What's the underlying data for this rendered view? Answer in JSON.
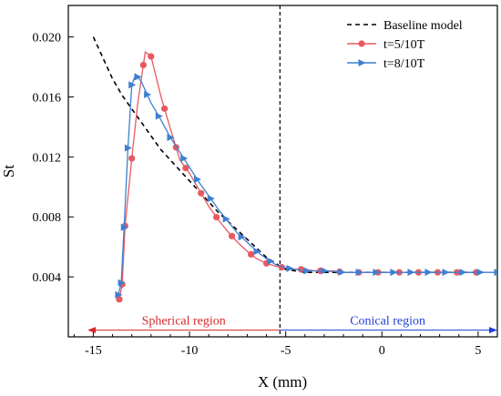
{
  "chart_data": {
    "type": "line",
    "xlabel": "X (mm)",
    "ylabel": "St",
    "xlim": [
      -16.3,
      6
    ],
    "ylim": [
      0.0,
      0.0221
    ],
    "x_ticks": [
      -15,
      -10,
      -5,
      0,
      5
    ],
    "x_tick_labels": [
      "-15",
      "-10",
      "-5",
      "0",
      "5"
    ],
    "y_ticks": [
      0.004,
      0.008,
      0.012,
      0.016,
      0.02
    ],
    "y_tick_labels": [
      "0.004",
      "0.008",
      "0.012",
      "0.016",
      "0.020"
    ],
    "grid": false,
    "legend_position": "top-right",
    "divider_x": -5.3,
    "series": [
      {
        "name": "Baseline model",
        "color": "#000000",
        "style": "dashed",
        "marker": "none",
        "points": [
          [
            -15.0,
            0.02
          ],
          [
            -14.5,
            0.0186
          ],
          [
            -14.0,
            0.0172
          ],
          [
            -13.5,
            0.0161
          ],
          [
            -13.0,
            0.0152
          ],
          [
            -12.5,
            0.0143
          ],
          [
            -12.0,
            0.0134
          ],
          [
            -11.5,
            0.0125
          ],
          [
            -11.0,
            0.0118
          ],
          [
            -10.5,
            0.0111
          ],
          [
            -10.0,
            0.0104
          ],
          [
            -9.5,
            0.0097
          ],
          [
            -9.0,
            0.009
          ],
          [
            -8.5,
            0.0083
          ],
          [
            -8.0,
            0.0077
          ],
          [
            -7.5,
            0.0071
          ],
          [
            -7.0,
            0.0065
          ],
          [
            -6.5,
            0.0059
          ],
          [
            -6.0,
            0.0053
          ],
          [
            -5.5,
            0.0049
          ],
          [
            -5.2,
            0.0046
          ],
          [
            -5.0,
            0.0045
          ],
          [
            -4.5,
            0.0044
          ],
          [
            -4.0,
            0.0043
          ],
          [
            -2.0,
            0.0043
          ],
          [
            0.0,
            0.0043
          ],
          [
            2.0,
            0.0043
          ],
          [
            4.0,
            0.0043
          ],
          [
            5.3,
            0.0043
          ]
        ]
      },
      {
        "name": "t=5/10T",
        "color": "#e8595f",
        "style": "solid",
        "marker": "circle",
        "points": [
          [
            -13.65,
            0.0025
          ],
          [
            -13.5,
            0.0035
          ],
          [
            -13.35,
            0.0074
          ],
          [
            -13.0,
            0.0119
          ],
          [
            -12.7,
            0.0155
          ],
          [
            -12.3,
            0.019
          ],
          [
            -12.0,
            0.0187
          ],
          [
            -11.5,
            0.0161
          ],
          [
            -11.0,
            0.0139
          ],
          [
            -10.5,
            0.0118
          ],
          [
            -10.0,
            0.0109
          ],
          [
            -9.5,
            0.0098
          ],
          [
            -9.0,
            0.0087
          ],
          [
            -8.5,
            0.0078
          ],
          [
            -8.0,
            0.007
          ],
          [
            -7.5,
            0.0063
          ],
          [
            -7.0,
            0.0057
          ],
          [
            -6.5,
            0.0052
          ],
          [
            -6.0,
            0.0049
          ],
          [
            -5.5,
            0.0047
          ],
          [
            -5.0,
            0.0046
          ],
          [
            -4.5,
            0.0045
          ],
          [
            -4.0,
            0.0045
          ],
          [
            -3.5,
            0.0044
          ],
          [
            -3.0,
            0.0044
          ],
          [
            -2.5,
            0.0044
          ],
          [
            -2.0,
            0.0043
          ],
          [
            -1.5,
            0.0043
          ],
          [
            -1.0,
            0.0043
          ],
          [
            -0.5,
            0.0043
          ],
          [
            0.0,
            0.0043
          ],
          [
            0.5,
            0.0043
          ],
          [
            1.0,
            0.0043
          ],
          [
            1.5,
            0.0043
          ],
          [
            2.0,
            0.0043
          ],
          [
            2.5,
            0.0043
          ],
          [
            3.0,
            0.0043
          ],
          [
            3.5,
            0.0043
          ],
          [
            4.0,
            0.0043
          ],
          [
            4.5,
            0.0043
          ],
          [
            5.0,
            0.0043
          ],
          [
            5.3,
            0.0043
          ]
        ],
        "marker_x": [
          -13.65,
          -13.5,
          -13.35,
          -13.0,
          -12.4,
          -12.0,
          -11.3,
          -10.7,
          -10.2,
          -9.4,
          -8.6,
          -7.8,
          -6.8,
          -6.0,
          -5.2,
          -4.2,
          -3.2,
          -2.2,
          -1.2,
          -0.2,
          0.9,
          1.9,
          2.9,
          3.9,
          4.9
        ]
      },
      {
        "name": "t=8/10T",
        "color": "#3f7fd1",
        "style": "solid",
        "marker": "triangle-right",
        "points": [
          [
            -13.7,
            0.0028
          ],
          [
            -13.55,
            0.0036
          ],
          [
            -13.4,
            0.0073
          ],
          [
            -13.2,
            0.0126
          ],
          [
            -13.0,
            0.0168
          ],
          [
            -12.8,
            0.0175
          ],
          [
            -12.5,
            0.017
          ],
          [
            -12.0,
            0.0156
          ],
          [
            -11.5,
            0.0145
          ],
          [
            -11.0,
            0.0133
          ],
          [
            -10.5,
            0.0123
          ],
          [
            -10.0,
            0.0113
          ],
          [
            -9.5,
            0.0103
          ],
          [
            -9.0,
            0.0094
          ],
          [
            -8.5,
            0.0085
          ],
          [
            -8.0,
            0.0077
          ],
          [
            -7.5,
            0.0069
          ],
          [
            -7.0,
            0.0063
          ],
          [
            -6.5,
            0.0057
          ],
          [
            -6.0,
            0.0052
          ],
          [
            -5.5,
            0.0048
          ],
          [
            -5.0,
            0.0046
          ],
          [
            -4.5,
            0.0045
          ],
          [
            -4.0,
            0.0044
          ],
          [
            -3.0,
            0.0044
          ],
          [
            -2.0,
            0.0043
          ],
          [
            -1.0,
            0.0043
          ],
          [
            0.0,
            0.0043
          ],
          [
            1.0,
            0.0043
          ],
          [
            2.0,
            0.0043
          ],
          [
            3.0,
            0.0043
          ],
          [
            4.0,
            0.0043
          ],
          [
            5.0,
            0.0043
          ],
          [
            6.0,
            0.0043
          ]
        ],
        "marker_x": [
          -13.7,
          -13.55,
          -13.4,
          -13.2,
          -13.0,
          -12.7,
          -12.2,
          -11.6,
          -11.0,
          -10.3,
          -9.6,
          -8.9,
          -8.1,
          -7.3,
          -6.5,
          -5.8,
          -4.8,
          -3.9,
          -3.0,
          -2.1,
          -1.2,
          -0.3,
          0.6,
          1.5,
          2.4,
          3.3,
          4.2,
          5.1,
          6.0
        ]
      }
    ],
    "annotations": [
      {
        "text": "Spherical region",
        "color": "#d62728",
        "arrow_from": -5.3,
        "arrow_to": -15.3,
        "arrow_y": 0.00045,
        "text_x": -10.3
      },
      {
        "text": "Conical region",
        "color": "#1f3fd6",
        "arrow_from": -5.3,
        "arrow_to": 6.0,
        "arrow_y": 0.00045,
        "text_x": 0.3
      }
    ]
  }
}
